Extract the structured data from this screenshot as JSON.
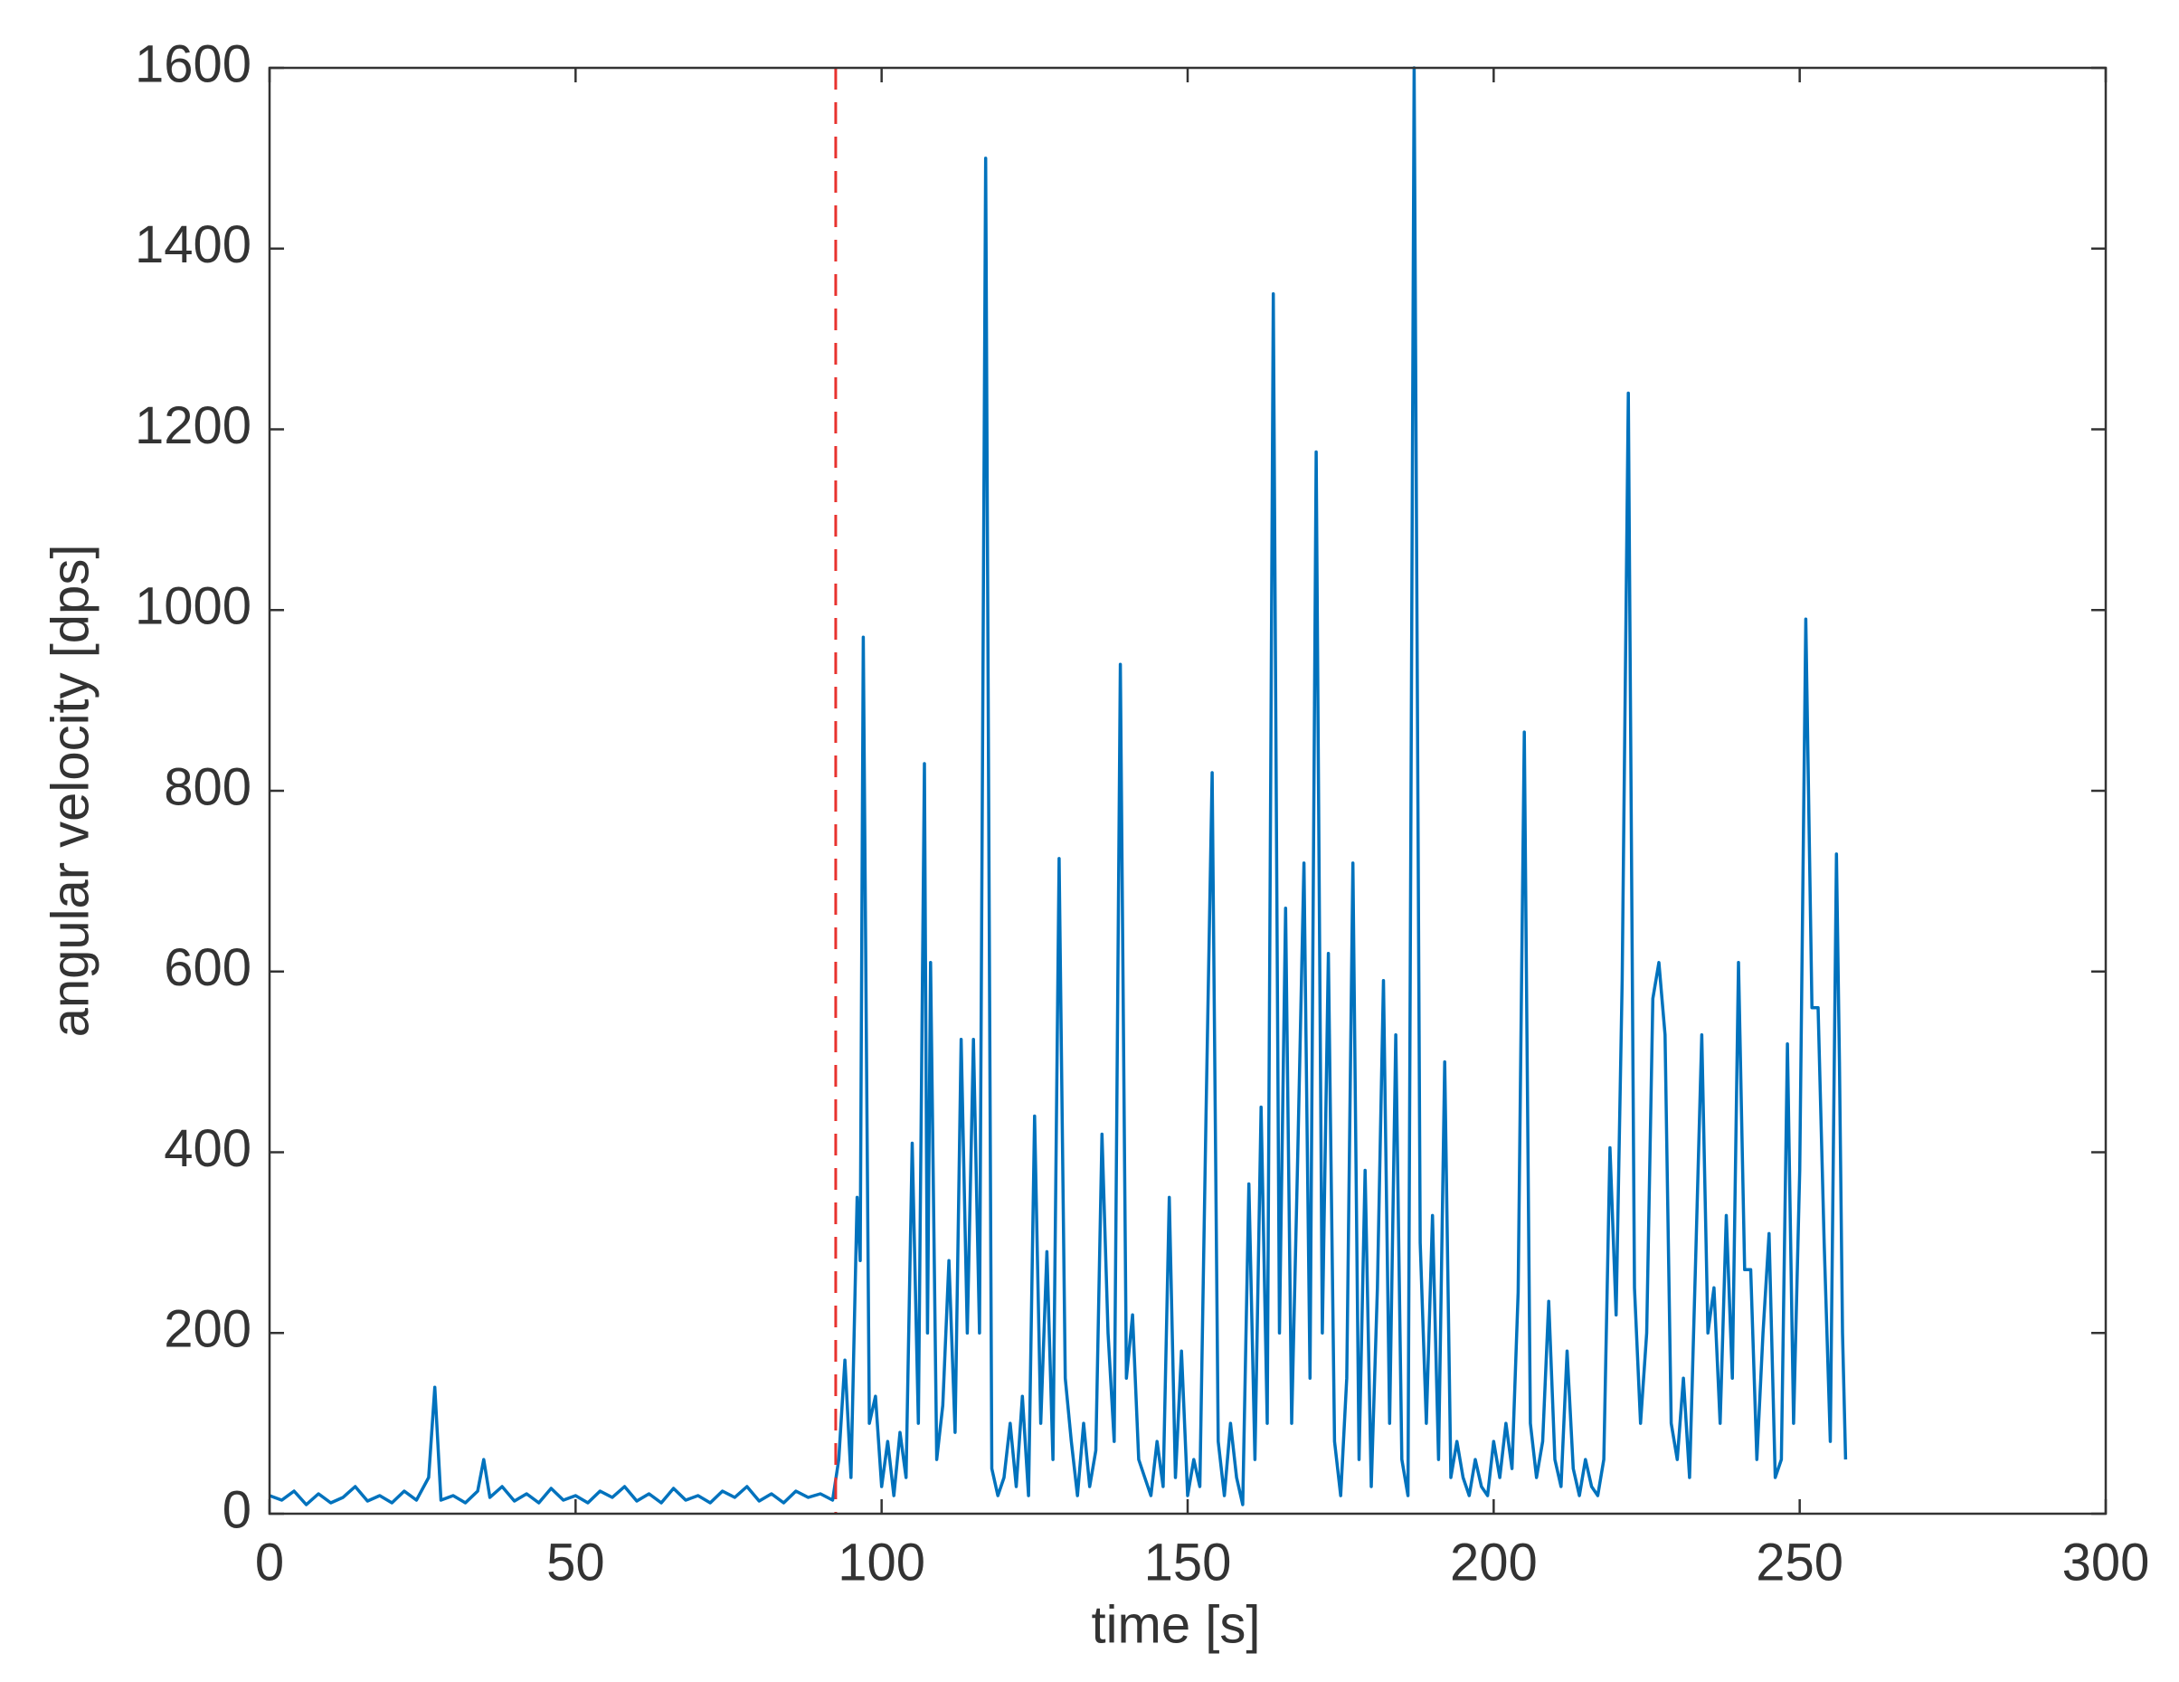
{
  "chart_data": {
    "type": "line",
    "xlabel": "time [s]",
    "ylabel": "angular velocity [dps]",
    "xlim": [
      0,
      300
    ],
    "xticks": [
      0,
      50,
      100,
      150,
      200,
      250,
      300
    ],
    "ylim": [
      0,
      1600
    ],
    "yticks": [
      0,
      200,
      400,
      600,
      800,
      1000,
      1200,
      1400,
      1600
    ],
    "vline": {
      "x": 92.5,
      "color": "#e8322e"
    },
    "series": [
      {
        "color": "#0072bd",
        "x": [
          0,
          2,
          4,
          6,
          8,
          10,
          12,
          14,
          16,
          18,
          20,
          22,
          24,
          26,
          27,
          28,
          30,
          32,
          34,
          35,
          36,
          38,
          40,
          42,
          44,
          46,
          48,
          50,
          52,
          54,
          56,
          58,
          60,
          62,
          64,
          66,
          68,
          70,
          72,
          74,
          76,
          78,
          80,
          82,
          84,
          86,
          88,
          90,
          92,
          93,
          94,
          95,
          96,
          96.5,
          97,
          98,
          99,
          100,
          101,
          102,
          103,
          104,
          105,
          106,
          107,
          107.5,
          108,
          109,
          110,
          111,
          112,
          113,
          114,
          115,
          116,
          117,
          118,
          119,
          120,
          121,
          122,
          123,
          124,
          125,
          126,
          127,
          128,
          129,
          130,
          131,
          132,
          133,
          134,
          135,
          136,
          137,
          138,
          139,
          140,
          141,
          142,
          143,
          144,
          145,
          146,
          147,
          148,
          149,
          150,
          151,
          152,
          153,
          154,
          155,
          156,
          157,
          158,
          159,
          160,
          161,
          162,
          163,
          164,
          165,
          166,
          167,
          168,
          169,
          170,
          171,
          172,
          173,
          174,
          175,
          176,
          177,
          178,
          179,
          180,
          181,
          182,
          183,
          184,
          185,
          186,
          187,
          188,
          189,
          190,
          191,
          192,
          193,
          194,
          195,
          196,
          197,
          198,
          199,
          200,
          201,
          202,
          203,
          204,
          205,
          206,
          207,
          208,
          209,
          210,
          211,
          212,
          213,
          214,
          215,
          216,
          217,
          218,
          219,
          220,
          221,
          222,
          223,
          224,
          225,
          226,
          227,
          228,
          229,
          230,
          231,
          232,
          233,
          234,
          235,
          236,
          237,
          238,
          239,
          240,
          241,
          242,
          243,
          244,
          245,
          246,
          247,
          248,
          249,
          250,
          251,
          252,
          253,
          254,
          255,
          256,
          256.5,
          257,
          257.5
        ],
        "values": [
          20,
          15,
          25,
          10,
          22,
          12,
          18,
          30,
          14,
          20,
          12,
          25,
          15,
          40,
          140,
          15,
          20,
          12,
          25,
          60,
          18,
          30,
          14,
          22,
          12,
          28,
          15,
          20,
          12,
          25,
          18,
          30,
          14,
          22,
          12,
          28,
          15,
          20,
          12,
          25,
          18,
          30,
          14,
          22,
          12,
          25,
          18,
          22,
          15,
          60,
          170,
          40,
          350,
          280,
          970,
          100,
          130,
          30,
          80,
          20,
          90,
          40,
          410,
          100,
          830,
          200,
          610,
          60,
          120,
          280,
          90,
          525,
          200,
          525,
          200,
          1500,
          50,
          20,
          40,
          100,
          30,
          130,
          20,
          440,
          100,
          290,
          60,
          725,
          150,
          80,
          20,
          100,
          30,
          70,
          420,
          200,
          80,
          940,
          150,
          220,
          60,
          40,
          20,
          80,
          30,
          350,
          40,
          180,
          20,
          60,
          30,
          440,
          820,
          80,
          20,
          100,
          40,
          10,
          365,
          60,
          450,
          100,
          1350,
          200,
          670,
          100,
          400,
          720,
          150,
          1175,
          200,
          620,
          80,
          20,
          150,
          720,
          60,
          380,
          30,
          250,
          590,
          100,
          530,
          60,
          20,
          1600,
          300,
          100,
          330,
          60,
          500,
          40,
          80,
          40,
          20,
          60,
          30,
          20,
          80,
          40,
          100,
          50,
          245,
          865,
          100,
          40,
          80,
          235,
          60,
          30,
          180,
          50,
          20,
          60,
          30,
          20,
          60,
          405,
          220,
          590,
          1240,
          250,
          100,
          200,
          570,
          610,
          530,
          100,
          60,
          150,
          40,
          280,
          530,
          200,
          250,
          100,
          330,
          150,
          610,
          270,
          270,
          60,
          200,
          310,
          40,
          60,
          520,
          100,
          380,
          990,
          560,
          560,
          300,
          80,
          730,
          500,
          200,
          60
        ]
      }
    ]
  }
}
